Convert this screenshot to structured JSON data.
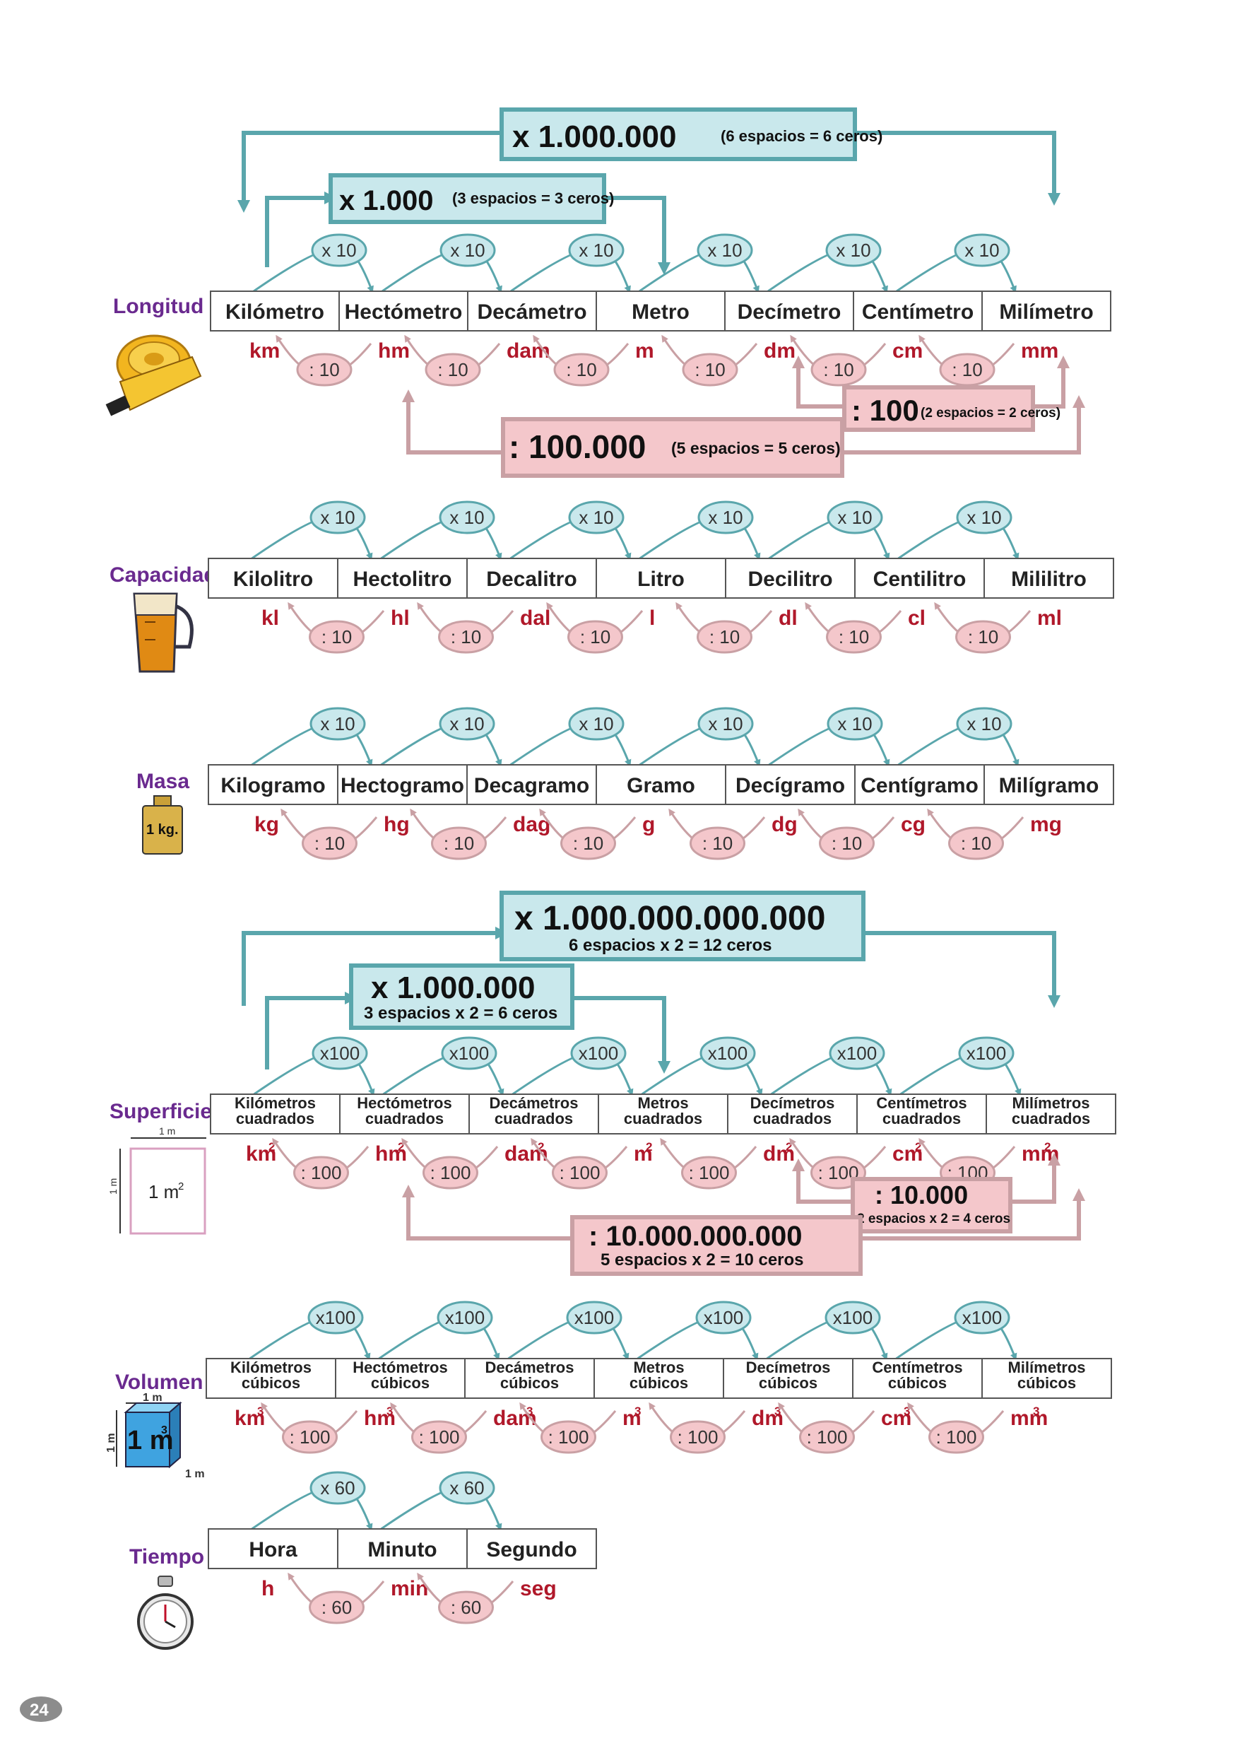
{
  "page_number": "24",
  "colors": {
    "teal": "#5aa6ac",
    "teal_fill": "#c9e8ec",
    "pink": "#c9a0a4",
    "pink_fill": "#f4c7cb",
    "purple": "#6a2a8f",
    "red": "#b0182a",
    "cell_border": "#555555"
  },
  "mult": {
    "x10": "x 10",
    "x100": "x100",
    "x60": "x 60"
  },
  "div": {
    "d10": ": 10",
    "d100": ": 100",
    "d60": ": 60"
  },
  "longitud": {
    "label": "Longitud",
    "units": [
      "Kilómetro",
      "Hectómetro",
      "Decámetro",
      "Metro",
      "Decímetro",
      "Centímetro",
      "Milímetro"
    ],
    "abbr": [
      "km",
      "hm",
      "dam",
      "m",
      "dm",
      "cm",
      "mm"
    ],
    "big_mult": {
      "main": "x 1.000.000",
      "note": "(6 espacios = 6 ceros)"
    },
    "small_mult": {
      "main": "x 1.000",
      "note": "(3 espacios = 3 ceros)"
    },
    "small_div": {
      "main": ": 100",
      "note": "(2 espacios = 2 ceros)"
    },
    "big_div": {
      "main": ": 100.000",
      "note": "(5 espacios = 5 ceros)"
    }
  },
  "capacidad": {
    "label": "Capacidad",
    "units": [
      "Kilolitro",
      "Hectolitro",
      "Decalitro",
      "Litro",
      "Decilitro",
      "Centilitro",
      "Mililitro"
    ],
    "abbr": [
      "kl",
      "hl",
      "dal",
      "l",
      "dl",
      "cl",
      "ml"
    ]
  },
  "masa": {
    "label": "Masa",
    "weight_label": "1 kg.",
    "units": [
      "Kilogramo",
      "Hectogramo",
      "Decagramo",
      "Gramo",
      "Decígramo",
      "Centígramo",
      "Milígramo"
    ],
    "abbr": [
      "kg",
      "hg",
      "dag",
      "g",
      "dg",
      "cg",
      "mg"
    ]
  },
  "superficie": {
    "label": "Superficie",
    "square_label": "1 m",
    "square_side": "1 m",
    "units": [
      [
        "Kilómetros",
        "cuadrados"
      ],
      [
        "Hectómetros",
        "cuadrados"
      ],
      [
        "Decámetros",
        "cuadrados"
      ],
      [
        "Metros",
        "cuadrados"
      ],
      [
        "Decímetros",
        "cuadrados"
      ],
      [
        "Centímetros",
        "cuadrados"
      ],
      [
        "Milímetros",
        "cuadrados"
      ]
    ],
    "abbr": [
      "km",
      "hm",
      "dam",
      "m",
      "dm",
      "cm",
      "mm"
    ],
    "power": "2",
    "big_mult": {
      "main": "x 1.000.000.000.000",
      "note": "6 espacios x 2 = 12 ceros"
    },
    "small_mult": {
      "main": "x 1.000.000",
      "note": "3 espacios x 2 = 6 ceros"
    },
    "small_div": {
      "main": ": 10.000",
      "note": "2 espacios x 2 = 4 ceros"
    },
    "big_div": {
      "main": ": 10.000.000.000",
      "note": "5 espacios x 2 = 10 ceros"
    }
  },
  "volumen": {
    "label": "Volumen",
    "cube_label": "1 m",
    "cube_side": "1 m",
    "units": [
      [
        "Kilómetros",
        "cúbicos"
      ],
      [
        "Hectómetros",
        "cúbicos"
      ],
      [
        "Decámetros",
        "cúbicos"
      ],
      [
        "Metros",
        "cúbicos"
      ],
      [
        "Decímetros",
        "cúbicos"
      ],
      [
        "Centímetros",
        "cúbicos"
      ],
      [
        "Milímetros",
        "cúbicos"
      ]
    ],
    "abbr": [
      "km",
      "hm",
      "dam",
      "m",
      "dm",
      "cm",
      "mm"
    ],
    "power": "3"
  },
  "tiempo": {
    "label": "Tiempo",
    "units": [
      "Hora",
      "Minuto",
      "Segundo"
    ],
    "abbr": [
      "h",
      "min",
      "seg"
    ]
  }
}
